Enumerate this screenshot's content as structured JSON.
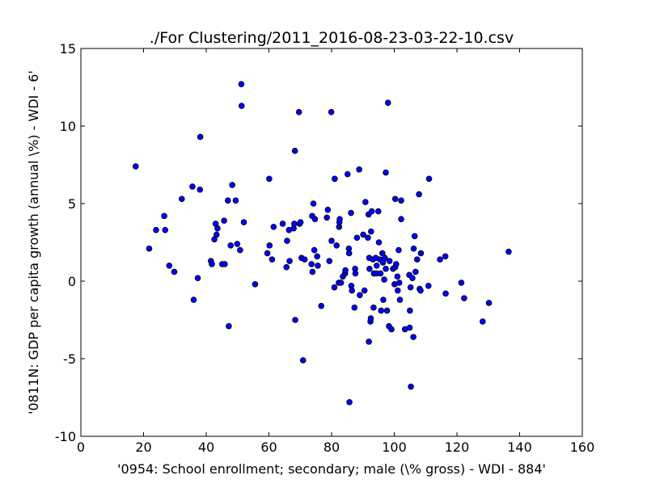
{
  "chart_data": {
    "type": "scatter",
    "title": "./For Clustering/2011_2016-08-23-03-22-10.csv",
    "xlabel": "'0954: School enrollment; secondary; male  (\\% gross) - WDI - 884'",
    "ylabel": "'0811N: GDP per capita growth  (annual \\%) - WDI - 6'",
    "xlim": [
      0,
      160
    ],
    "ylim": [
      -10,
      15
    ],
    "xticks": [
      0,
      20,
      40,
      60,
      80,
      100,
      120,
      140,
      160
    ],
    "yticks": [
      -10,
      -5,
      0,
      5,
      10,
      15
    ],
    "grid": false,
    "marker_color": "#0000ff",
    "marker_edge": "#000000",
    "points": [
      [
        17.5,
        7.4
      ],
      [
        21.8,
        2.1
      ],
      [
        24.0,
        3.3
      ],
      [
        26.6,
        4.2
      ],
      [
        26.9,
        3.3
      ],
      [
        28.2,
        1.0
      ],
      [
        29.8,
        0.6
      ],
      [
        32.2,
        5.3
      ],
      [
        35.6,
        6.1
      ],
      [
        36.0,
        -1.2
      ],
      [
        37.3,
        0.2
      ],
      [
        38.0,
        5.9
      ],
      [
        38.1,
        9.3
      ],
      [
        41.5,
        1.3
      ],
      [
        41.8,
        1.1
      ],
      [
        42.6,
        2.7
      ],
      [
        43.0,
        3.7
      ],
      [
        43.3,
        3.0
      ],
      [
        43.6,
        3.4
      ],
      [
        45.1,
        1.1
      ],
      [
        45.7,
        3.9
      ],
      [
        45.9,
        1.1
      ],
      [
        46.9,
        5.2
      ],
      [
        47.2,
        -2.9
      ],
      [
        47.8,
        2.3
      ],
      [
        48.3,
        6.2
      ],
      [
        49.4,
        5.2
      ],
      [
        49.9,
        2.4
      ],
      [
        50.8,
        2.0
      ],
      [
        51.2,
        12.7
      ],
      [
        51.3,
        11.3
      ],
      [
        52.0,
        3.8
      ],
      [
        55.6,
        -0.2
      ],
      [
        59.5,
        1.8
      ],
      [
        60.1,
        6.6
      ],
      [
        60.2,
        2.3
      ],
      [
        61.0,
        1.4
      ],
      [
        61.5,
        3.5
      ],
      [
        64.4,
        3.7
      ],
      [
        65.6,
        0.9
      ],
      [
        65.8,
        2.6
      ],
      [
        66.4,
        3.3
      ],
      [
        66.6,
        1.3
      ],
      [
        67.9,
        3.4
      ],
      [
        68.1,
        3.7
      ],
      [
        68.3,
        8.4
      ],
      [
        68.4,
        -2.5
      ],
      [
        69.6,
        10.9
      ],
      [
        69.8,
        3.7
      ],
      [
        70.1,
        3.8
      ],
      [
        70.4,
        1.5
      ],
      [
        70.9,
        -5.1
      ],
      [
        71.4,
        1.4
      ],
      [
        73.6,
        1.1
      ],
      [
        73.8,
        4.2
      ],
      [
        73.9,
        0.6
      ],
      [
        74.2,
        5.0
      ],
      [
        74.5,
        2.0
      ],
      [
        74.7,
        4.0
      ],
      [
        75.4,
        1.6
      ],
      [
        75.6,
        1.0
      ],
      [
        76.7,
        -1.6
      ],
      [
        78.5,
        4.1
      ],
      [
        78.8,
        4.6
      ],
      [
        79.3,
        1.3
      ],
      [
        79.9,
        10.9
      ],
      [
        80.0,
        2.6
      ],
      [
        80.9,
        -0.4
      ],
      [
        81.0,
        6.6
      ],
      [
        81.6,
        2.3
      ],
      [
        82.3,
        -0.1
      ],
      [
        82.4,
        3.5
      ],
      [
        82.5,
        3.8
      ],
      [
        82.6,
        4.0
      ],
      [
        83.0,
        -0.1
      ],
      [
        83.6,
        0.3
      ],
      [
        84.3,
        0.5
      ],
      [
        84.4,
        0.7
      ],
      [
        85.1,
        6.9
      ],
      [
        85.5,
        2.1
      ],
      [
        85.6,
        1.8
      ],
      [
        85.7,
        -7.8
      ],
      [
        86.2,
        4.4
      ],
      [
        86.3,
        -0.3
      ],
      [
        86.5,
        -0.6
      ],
      [
        87.3,
        -1.7
      ],
      [
        87.5,
        0.8
      ],
      [
        87.6,
        0.5
      ],
      [
        88.1,
        2.8
      ],
      [
        88.8,
        7.2
      ],
      [
        89.0,
        -0.9
      ],
      [
        90.1,
        3.0
      ],
      [
        90.5,
        -0.6
      ],
      [
        90.8,
        5.1
      ],
      [
        91.6,
        2.8
      ],
      [
        91.8,
        4.3
      ],
      [
        91.9,
        -3.9
      ],
      [
        92.0,
        1.5
      ],
      [
        92.1,
        0.8
      ],
      [
        92.4,
        -2.6
      ],
      [
        92.5,
        -2.4
      ],
      [
        92.6,
        3.2
      ],
      [
        92.8,
        4.5
      ],
      [
        93.2,
        1.4
      ],
      [
        93.4,
        -1.7
      ],
      [
        93.5,
        0.5
      ],
      [
        94.1,
        1.5
      ],
      [
        94.3,
        0.5
      ],
      [
        94.4,
        1.0
      ],
      [
        94.9,
        4.5
      ],
      [
        95.1,
        2.5
      ],
      [
        95.4,
        1.4
      ],
      [
        95.6,
        0.5
      ],
      [
        95.8,
        -1.9
      ],
      [
        96.2,
        1.8
      ],
      [
        96.4,
        1.2
      ],
      [
        96.5,
        -1.2
      ],
      [
        96.8,
        0.1
      ],
      [
        97.0,
        1.5
      ],
      [
        97.3,
        7.0
      ],
      [
        97.3,
        0.8
      ],
      [
        97.7,
        -1.9
      ],
      [
        98.0,
        11.5
      ],
      [
        98.3,
        -2.9
      ],
      [
        98.5,
        1.3
      ],
      [
        99.1,
        -3.1
      ],
      [
        99.6,
        0.8
      ],
      [
        100.1,
        -0.2
      ],
      [
        100.3,
        5.3
      ],
      [
        100.3,
        0.9
      ],
      [
        100.6,
        1.1
      ],
      [
        101.0,
        0.3
      ],
      [
        101.1,
        -0.6
      ],
      [
        101.4,
        2.0
      ],
      [
        101.6,
        -0.1
      ],
      [
        101.8,
        -1.2
      ],
      [
        102.2,
        5.2
      ],
      [
        102.2,
        4.0
      ],
      [
        103.4,
        -3.1
      ],
      [
        104.8,
        0.4
      ],
      [
        104.9,
        -3.0
      ],
      [
        105.0,
        -1.9
      ],
      [
        105.2,
        -0.4
      ],
      [
        105.3,
        -6.8
      ],
      [
        105.8,
        0.2
      ],
      [
        106.1,
        -3.6
      ],
      [
        106.2,
        2.1
      ],
      [
        106.5,
        2.9
      ],
      [
        106.8,
        0.6
      ],
      [
        107.3,
        1.4
      ],
      [
        107.9,
        5.6
      ],
      [
        108.1,
        -0.5
      ],
      [
        108.4,
        -0.6
      ],
      [
        108.5,
        1.8
      ],
      [
        110.9,
        -0.3
      ],
      [
        111.1,
        6.6
      ],
      [
        114.6,
        1.4
      ],
      [
        116.3,
        1.6
      ],
      [
        116.4,
        -0.8
      ],
      [
        121.4,
        -0.1
      ],
      [
        122.3,
        -1.1
      ],
      [
        128.2,
        -2.6
      ],
      [
        130.2,
        -1.4
      ],
      [
        136.5,
        1.9
      ]
    ]
  }
}
